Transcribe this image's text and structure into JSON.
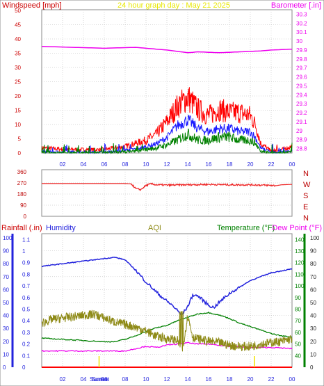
{
  "colors": {
    "wind_title": "#cc0000",
    "date_title": "#e8e800",
    "baro": "#ee00ee",
    "gust": "#ff0000",
    "wind_avg": "#1a1aff",
    "wind_low": "#008000",
    "dir": "#ee2222",
    "dir_axis": "#bb0000",
    "rain_title": "#cc0000",
    "hum": "#2222dd",
    "aqi_title": "#8e8a16",
    "aqi": "#8e8a16",
    "temp": "#008000",
    "dew": "#ee00ee",
    "rain_axis": "#ff0000",
    "event": "#f2e200",
    "grid": "#b4b4b4"
  },
  "panel1": {
    "title_left": "Windspeed [mph]",
    "title_center": "24 hour graph day : May 21 2025",
    "title_right": "Barometer [.in]",
    "left_ticks": [
      "50",
      "45",
      "40",
      "35",
      "30",
      "25",
      "20",
      "15",
      "10",
      "5",
      "0"
    ],
    "right_ticks": [
      "30.3",
      "30.2",
      "30.1",
      "30",
      "29.9",
      "29.8",
      "29.7",
      "29.6",
      "29.5",
      "29.4",
      "29.3",
      "29.2",
      "29.1",
      "29",
      "28.9",
      "28.8"
    ],
    "hour_ticks": [
      "02",
      "04",
      "06",
      "08",
      "10",
      "12",
      "14",
      "16",
      "18",
      "20",
      "22",
      "00"
    ]
  },
  "panel2": {
    "left_ticks": [
      "360",
      "270",
      "180",
      "90",
      "0"
    ],
    "right_ticks": [
      "N",
      "W",
      "S",
      "E",
      "N"
    ]
  },
  "panel3": {
    "title_rain": "Rainfall (.in)",
    "title_hum": "Humidity",
    "title_aqi": "AQI",
    "title_temp": "Temperature (°F)",
    "title_dew": "Dew Point (°F)",
    "hum_ticks": [
      "100",
      "90",
      "80",
      "70",
      "60",
      "50",
      "40",
      "30",
      "20",
      "10",
      "0"
    ],
    "rain_ticks": [
      "1.1",
      "1",
      "0.9",
      "0.8",
      "0.7",
      "0.6",
      "0.5",
      "0.4",
      "0.3",
      "0.2",
      "0.1",
      "0"
    ],
    "temp_ticks": [
      "140",
      "130",
      "120",
      "110",
      "100",
      "90",
      "80",
      "70",
      "60",
      "50",
      "40"
    ],
    "aqi_ticks": [
      "100",
      "90",
      "80",
      "70",
      "60",
      "50",
      "40",
      "30",
      "20",
      "10",
      "0"
    ],
    "hour_ticks": [
      "02",
      "04",
      "06",
      "08",
      "10",
      "12",
      "14",
      "16",
      "18",
      "20",
      "22",
      "00"
    ],
    "sunrise_label": "Sunrise",
    "sunset_label": "Sunset"
  },
  "chart_data": [
    {
      "type": "line",
      "title": "24 hour graph day : May 21 2025",
      "x_unit": "hour of day",
      "x_ticks": [
        "02",
        "04",
        "06",
        "08",
        "10",
        "12",
        "14",
        "16",
        "18",
        "20",
        "22",
        "00"
      ],
      "y_left": {
        "label": "Windspeed [mph]",
        "range": [
          0,
          50
        ]
      },
      "y_right": {
        "label": "Barometer [.in]",
        "range": [
          28.75,
          30.35
        ]
      },
      "series": [
        {
          "axis": "right",
          "hours": [
            0,
            3,
            6,
            9,
            12,
            14,
            15,
            17,
            19,
            21,
            22,
            24
          ],
          "values": [
            29.94,
            29.93,
            29.92,
            29.93,
            29.9,
            29.87,
            29.88,
            29.87,
            29.88,
            29.89,
            29.9,
            29.91
          ]
        },
        {
          "axis": "left",
          "hours": [
            0,
            3,
            6,
            8,
            9,
            10,
            11,
            12,
            13,
            14,
            15,
            16,
            17,
            18,
            19,
            20,
            20.5,
            21,
            22,
            23,
            24
          ],
          "values": [
            1.5,
            1,
            1,
            2,
            3,
            4,
            6,
            10,
            15,
            18,
            14,
            12,
            14,
            13,
            13,
            12,
            9,
            3,
            0.5,
            1,
            2
          ]
        },
        {
          "axis": "left",
          "hours": [
            0,
            3,
            6,
            8,
            9,
            10,
            11,
            12,
            13,
            14,
            15,
            16,
            17,
            18,
            19,
            20,
            20.5,
            21,
            22,
            23,
            24
          ],
          "values": [
            0.3,
            0.2,
            0.2,
            0.8,
            1.2,
            2,
            3,
            5,
            9,
            11,
            8,
            7,
            8,
            8,
            7,
            7,
            5,
            1.5,
            0.2,
            0.3,
            0.5
          ]
        },
        {
          "axis": "left",
          "hours": [
            0,
            3,
            6,
            8,
            9,
            10,
            11,
            12,
            13,
            14,
            15,
            16,
            17,
            18,
            19,
            20,
            20.5,
            21,
            22,
            23,
            24
          ],
          "values": [
            0,
            0,
            0,
            0.3,
            0.5,
            1,
            1.5,
            2.5,
            4,
            6,
            4,
            4,
            5,
            5,
            4,
            4,
            3,
            0.5,
            0,
            0,
            0.2
          ]
        }
      ]
    },
    {
      "type": "line",
      "x_unit": "hour of day",
      "y_left": {
        "label": "",
        "range": [
          0,
          360
        ],
        "ticks": [
          "360",
          "270",
          "180",
          "90",
          "0"
        ]
      },
      "y_right": {
        "ticks": [
          "N",
          "W",
          "S",
          "E",
          "N"
        ]
      },
      "series": [
        {
          "hours": [
            0,
            6,
            8,
            8.6,
            9.0,
            9.5,
            10,
            10.5,
            11,
            12,
            14,
            16,
            18,
            20,
            21,
            22,
            22.5,
            23,
            24
          ],
          "values": [
            265,
            265,
            265,
            262,
            225,
            215,
            250,
            262,
            255,
            252,
            255,
            258,
            255,
            255,
            252,
            250,
            248,
            255,
            258
          ]
        }
      ]
    },
    {
      "type": "line",
      "x_unit": "hour of day",
      "x_ticks": [
        "02",
        "04",
        "06",
        "08",
        "10",
        "12",
        "14",
        "16",
        "18",
        "20",
        "22",
        "00"
      ],
      "axes": {
        "humidity": {
          "label": "Humidity",
          "range": [
            0,
            100
          ]
        },
        "rainfall": {
          "label": "Rainfall (.in)",
          "range": [
            0,
            1.15
          ]
        },
        "temperature": {
          "label": "Temperature (°F)",
          "range": [
            30,
            145
          ]
        },
        "aqi": {
          "label": "AQI",
          "range": [
            0,
            100
          ]
        }
      },
      "series": [
        {
          "axis": "humidity",
          "hours": [
            0,
            2,
            4,
            6,
            7,
            8,
            9,
            10,
            11,
            12,
            12.5,
            13,
            13.4,
            14,
            14.5,
            15,
            16,
            16.5,
            17,
            18,
            19,
            20,
            22,
            24
          ],
          "values": [
            78,
            80,
            82,
            84,
            85,
            83,
            75,
            66,
            58,
            51,
            48,
            44,
            40,
            47,
            56,
            55,
            48,
            46,
            50,
            57,
            62,
            67,
            73,
            76
          ]
        },
        {
          "axis": "aqi",
          "hours": [
            0,
            1,
            2,
            3,
            4,
            5,
            6,
            7,
            8,
            9,
            10,
            11,
            12,
            13,
            13.5,
            14,
            14.5,
            15,
            16,
            17,
            18,
            19,
            20,
            21,
            22,
            23,
            24
          ],
          "values": [
            34,
            37,
            38,
            39,
            40,
            41,
            38,
            35,
            33,
            31,
            28,
            24,
            22,
            21,
            13,
            40,
            23,
            22,
            20,
            19,
            17,
            16,
            16,
            18,
            19,
            20,
            22
          ]
        },
        {
          "axis": "temperature",
          "hours": [
            0,
            2,
            4,
            6,
            7,
            8,
            9,
            10,
            11,
            12,
            13,
            14,
            15,
            16,
            17,
            18,
            19,
            20,
            21,
            22,
            23,
            24
          ],
          "values": [
            55,
            54,
            53,
            52,
            52,
            54,
            57,
            61,
            64,
            66,
            70,
            73,
            76,
            77,
            75,
            72,
            68,
            65,
            62,
            59,
            57,
            56
          ]
        },
        {
          "axis": "temperature",
          "hours": [
            0,
            2,
            4,
            6,
            8,
            9,
            10,
            11,
            12,
            13,
            14,
            15,
            16,
            17,
            18,
            20,
            22,
            24
          ],
          "values": [
            44,
            44,
            44,
            44,
            44,
            46,
            48,
            47,
            49,
            50,
            51,
            50,
            50,
            49,
            48,
            47,
            47,
            46
          ]
        }
      ],
      "events": [
        {
          "label": "Sunrise",
          "hour": 5.5
        },
        {
          "label": "Sunset",
          "hour": 20.4
        }
      ]
    }
  ]
}
